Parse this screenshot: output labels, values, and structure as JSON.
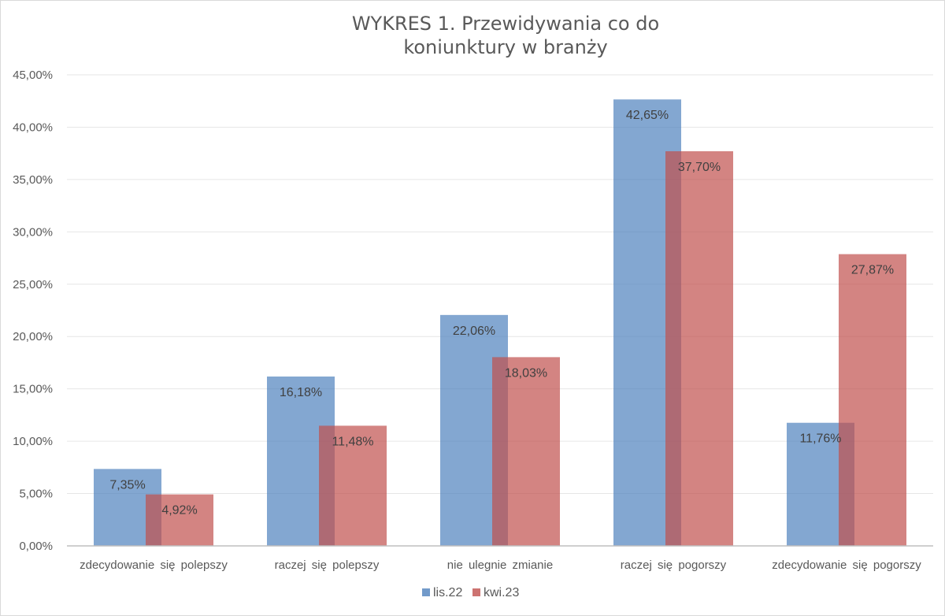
{
  "chart_data": {
    "type": "bar",
    "title": [
      "WYKRES 1. Przewidywania co do",
      "koniunktury w branży"
    ],
    "categories": [
      "zdecydowanie się polepszy",
      "raczej się polepszy",
      "nie ulegnie zmianie",
      "raczej się pogorszy",
      "zdecydowanie się pogorszy"
    ],
    "series": [
      {
        "name": "lis.22",
        "color": "#4f81bd",
        "values": [
          7.35,
          16.18,
          22.06,
          42.65,
          11.76
        ],
        "labels": [
          "7,35%",
          "16,18%",
          "22,06%",
          "42,65%",
          "11,76%"
        ]
      },
      {
        "name": "kwi.23",
        "color": "#c0504d",
        "values": [
          4.92,
          11.48,
          18.03,
          37.7,
          27.87
        ],
        "labels": [
          "4,92%",
          "11,48%",
          "18,03%",
          "37,70%",
          "27,87%"
        ]
      }
    ],
    "yticks": [
      0,
      5,
      10,
      15,
      20,
      25,
      30,
      35,
      40,
      45
    ],
    "ytick_labels": [
      "0,00%",
      "5,00%",
      "10,00%",
      "15,00%",
      "20,00%",
      "25,00%",
      "30,00%",
      "35,00%",
      "40,00%",
      "45,00%"
    ],
    "ylim": [
      0,
      45
    ],
    "xlabel": "",
    "ylabel": "",
    "grid": true,
    "legend_position": "bottom-center"
  }
}
